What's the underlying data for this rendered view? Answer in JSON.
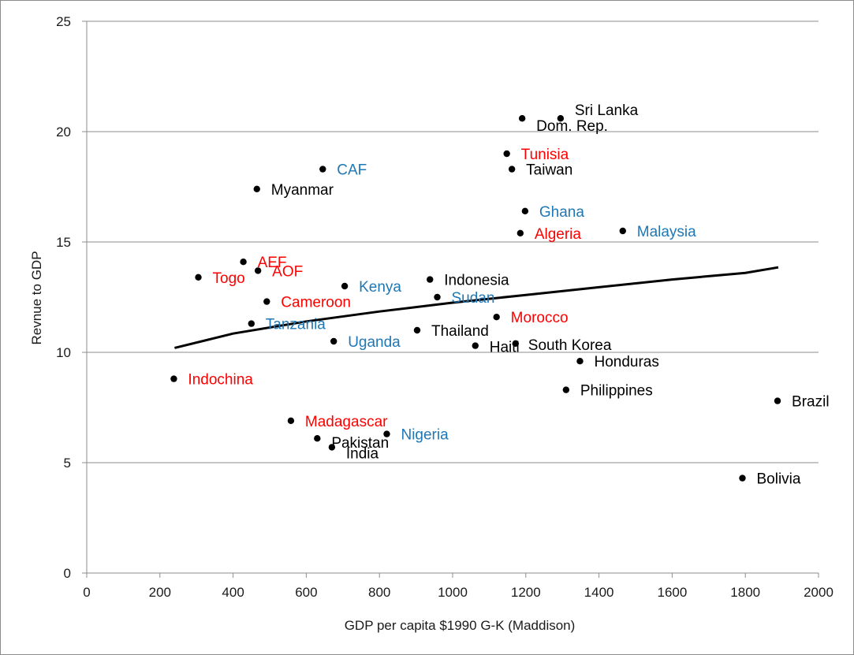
{
  "chart_data": {
    "type": "scatter",
    "title": "",
    "xlabel": "GDP per capita $1990 G-K (Maddison)",
    "ylabel": "Revnue to GDP",
    "xlim": [
      0,
      2000
    ],
    "ylim": [
      0,
      25
    ],
    "x_ticks": [
      0,
      200,
      400,
      600,
      800,
      1000,
      1200,
      1400,
      1600,
      1800,
      2000
    ],
    "y_ticks": [
      0,
      5,
      10,
      15,
      20,
      25
    ],
    "grid": "horizontal",
    "legend": "none",
    "label_colors": {
      "black": "#000000",
      "red": "#ff0000",
      "blue": "#1f77b4"
    },
    "marker_color": "#000000",
    "points": [
      {
        "label": "Sri Lanka",
        "x": 1295,
        "y": 20.6,
        "group": "black"
      },
      {
        "label": "Dom. Rep.",
        "x": 1190,
        "y": 20.6,
        "group": "black"
      },
      {
        "label": "Tunisia",
        "x": 1148,
        "y": 19.0,
        "group": "red"
      },
      {
        "label": "Taiwan",
        "x": 1162,
        "y": 18.3,
        "group": "black"
      },
      {
        "label": "CAF",
        "x": 645,
        "y": 18.3,
        "group": "blue"
      },
      {
        "label": "Myanmar",
        "x": 465,
        "y": 17.4,
        "group": "black"
      },
      {
        "label": "Ghana",
        "x": 1198,
        "y": 16.4,
        "group": "blue"
      },
      {
        "label": "Algeria",
        "x": 1185,
        "y": 15.4,
        "group": "red"
      },
      {
        "label": "Malaysia",
        "x": 1465,
        "y": 15.5,
        "group": "blue"
      },
      {
        "label": "AEF",
        "x": 428,
        "y": 14.1,
        "group": "red"
      },
      {
        "label": "AOF",
        "x": 468,
        "y": 13.7,
        "group": "red"
      },
      {
        "label": "Togo",
        "x": 305,
        "y": 13.4,
        "group": "red"
      },
      {
        "label": "Kenya",
        "x": 705,
        "y": 13.0,
        "group": "blue"
      },
      {
        "label": "Indonesia",
        "x": 938,
        "y": 13.3,
        "group": "black"
      },
      {
        "label": "Sudan",
        "x": 958,
        "y": 12.5,
        "group": "blue"
      },
      {
        "label": "Cameroon",
        "x": 492,
        "y": 12.3,
        "group": "red"
      },
      {
        "label": "Morocco",
        "x": 1120,
        "y": 11.6,
        "group": "red"
      },
      {
        "label": "Tanzania",
        "x": 450,
        "y": 11.3,
        "group": "blue"
      },
      {
        "label": "Thailand",
        "x": 903,
        "y": 11.0,
        "group": "black"
      },
      {
        "label": "Uganda",
        "x": 675,
        "y": 10.5,
        "group": "blue"
      },
      {
        "label": "Haiti",
        "x": 1062,
        "y": 10.3,
        "group": "black"
      },
      {
        "label": "South Korea",
        "x": 1172,
        "y": 10.4,
        "group": "black"
      },
      {
        "label": "Honduras",
        "x": 1348,
        "y": 9.6,
        "group": "black"
      },
      {
        "label": "Indochina",
        "x": 238,
        "y": 8.8,
        "group": "red"
      },
      {
        "label": "Philippines",
        "x": 1310,
        "y": 8.3,
        "group": "black"
      },
      {
        "label": "Brazil",
        "x": 1888,
        "y": 7.8,
        "group": "black"
      },
      {
        "label": "Madagascar",
        "x": 558,
        "y": 6.9,
        "group": "red"
      },
      {
        "label": "Nigeria",
        "x": 820,
        "y": 6.3,
        "group": "blue"
      },
      {
        "label": "Pakistan",
        "x": 630,
        "y": 6.1,
        "group": "black"
      },
      {
        "label": "India",
        "x": 670,
        "y": 5.7,
        "group": "black"
      },
      {
        "label": "Bolivia",
        "x": 1792,
        "y": 4.3,
        "group": "black"
      }
    ],
    "trendline": {
      "type": "logarithmic",
      "x": [
        240,
        400,
        600,
        800,
        1000,
        1200,
        1400,
        1600,
        1800,
        1890
      ],
      "y": [
        10.2,
        10.85,
        11.4,
        11.85,
        12.25,
        12.6,
        12.95,
        13.3,
        13.6,
        13.85
      ]
    }
  }
}
